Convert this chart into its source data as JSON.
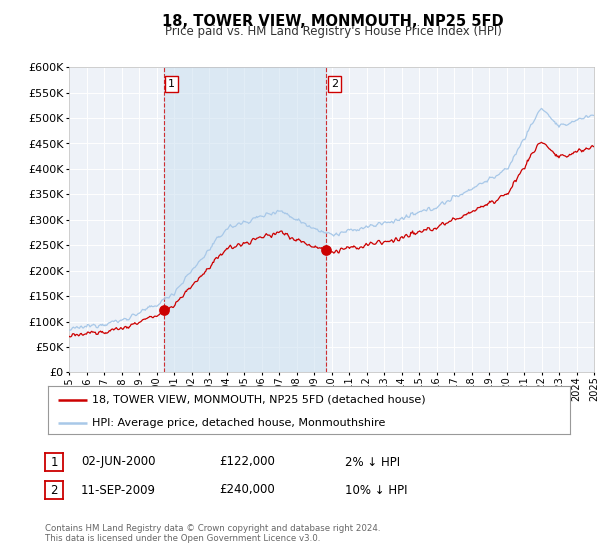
{
  "title": "18, TOWER VIEW, MONMOUTH, NP25 5FD",
  "subtitle": "Price paid vs. HM Land Registry's House Price Index (HPI)",
  "hpi_label": "HPI: Average price, detached house, Monmouthshire",
  "property_label": "18, TOWER VIEW, MONMOUTH, NP25 5FD (detached house)",
  "hpi_color": "#a8c8e8",
  "property_color": "#cc0000",
  "sale1_date": "02-JUN-2000",
  "sale1_price": 122000,
  "sale1_pct": "2% ↓ HPI",
  "sale1_x": 2000.42,
  "sale2_date": "11-SEP-2009",
  "sale2_price": 240000,
  "sale2_pct": "10% ↓ HPI",
  "sale2_x": 2009.7,
  "xmin": 1995,
  "xmax": 2025,
  "ymin": 0,
  "ymax": 600000,
  "yticks": [
    0,
    50000,
    100000,
    150000,
    200000,
    250000,
    300000,
    350000,
    400000,
    450000,
    500000,
    550000,
    600000
  ],
  "background_color": "#ffffff",
  "plot_bg_color": "#eef2f8",
  "grid_color": "#ffffff",
  "footnote": "Contains HM Land Registry data © Crown copyright and database right 2024.\nThis data is licensed under the Open Government Licence v3.0."
}
